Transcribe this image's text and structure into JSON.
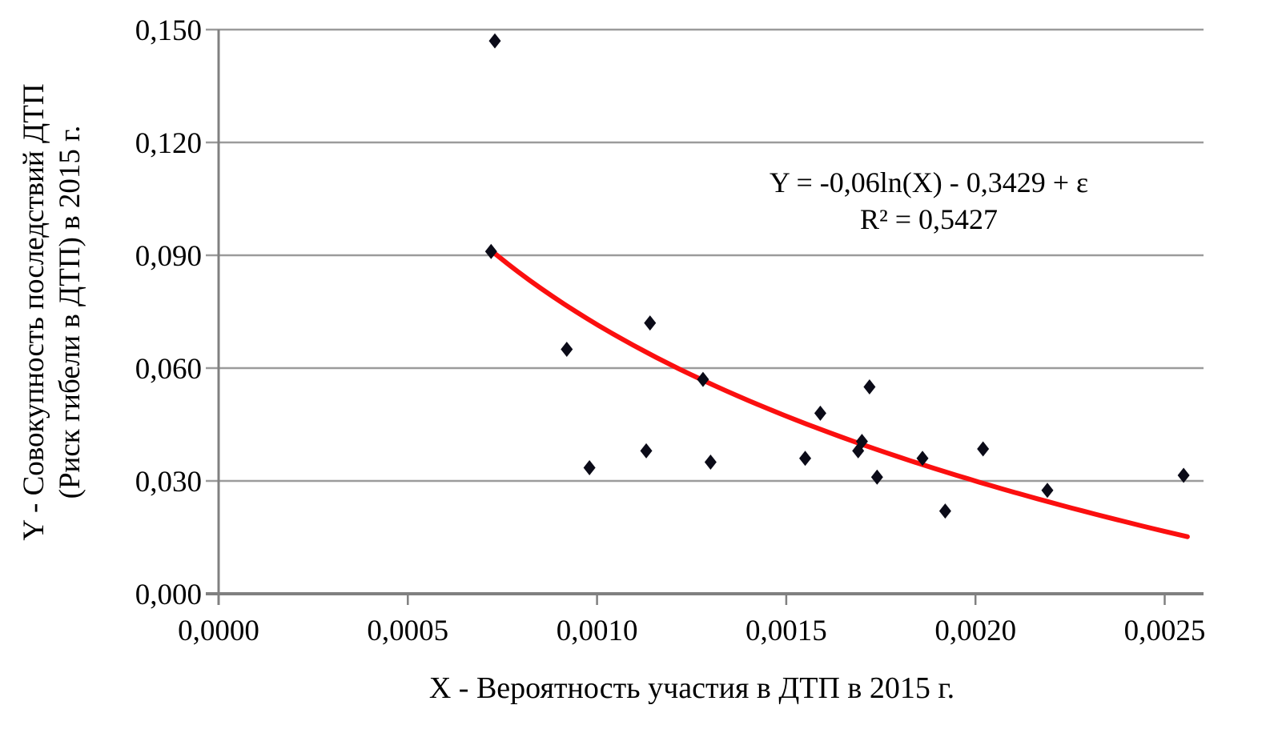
{
  "chart_data": {
    "type": "scatter",
    "title": "",
    "xlabel": "X - Вероятность участия в ДТП в 2015  г.",
    "ylabel_line1": "Y - Совокупность последствий ДТП",
    "ylabel_line2": "(Риск гибели в ДТП) в 2015 г.",
    "xlim": [
      0,
      0.0026
    ],
    "ylim": [
      0,
      0.15
    ],
    "grid": true,
    "legend_position": "none",
    "x_ticks": [
      "0,0000",
      "0,0005",
      "0,0010",
      "0,0015",
      "0,0020",
      "0,0025"
    ],
    "x_tick_values": [
      0,
      0.0005,
      0.001,
      0.0015,
      0.002,
      0.0025
    ],
    "y_ticks": [
      "0,000",
      "0,030",
      "0,060",
      "0,090",
      "0,120",
      "0,150"
    ],
    "y_tick_values": [
      0,
      0.03,
      0.06,
      0.09,
      0.12,
      0.15
    ],
    "points": [
      {
        "x": 0.00072,
        "y": 0.091
      },
      {
        "x": 0.00073,
        "y": 0.147
      },
      {
        "x": 0.00092,
        "y": 0.065
      },
      {
        "x": 0.00098,
        "y": 0.0335
      },
      {
        "x": 0.00113,
        "y": 0.038
      },
      {
        "x": 0.00114,
        "y": 0.072
      },
      {
        "x": 0.00128,
        "y": 0.057
      },
      {
        "x": 0.0013,
        "y": 0.035
      },
      {
        "x": 0.00155,
        "y": 0.036
      },
      {
        "x": 0.00159,
        "y": 0.048
      },
      {
        "x": 0.00169,
        "y": 0.038
      },
      {
        "x": 0.0017,
        "y": 0.0405
      },
      {
        "x": 0.00172,
        "y": 0.055
      },
      {
        "x": 0.00174,
        "y": 0.031
      },
      {
        "x": 0.00186,
        "y": 0.036
      },
      {
        "x": 0.00192,
        "y": 0.022
      },
      {
        "x": 0.00202,
        "y": 0.0385
      },
      {
        "x": 0.00219,
        "y": 0.0275
      },
      {
        "x": 0.00255,
        "y": 0.0315
      }
    ],
    "marker": {
      "shape": "diamond",
      "color": "#0b0b18"
    },
    "trendline": {
      "type": "logarithmic",
      "a": -0.06,
      "b": -0.3429,
      "x_start": 0.00073,
      "x_end": 0.00256,
      "color": "#fb0f0f",
      "equation_line1": "Y = -0,06ln(X) - 0,3429 + ε",
      "equation_line2": "R² = 0,5427"
    },
    "colors": {
      "grid": "#9b9b9b",
      "axis": "#808080",
      "text": "#000000",
      "background": "#ffffff"
    }
  }
}
